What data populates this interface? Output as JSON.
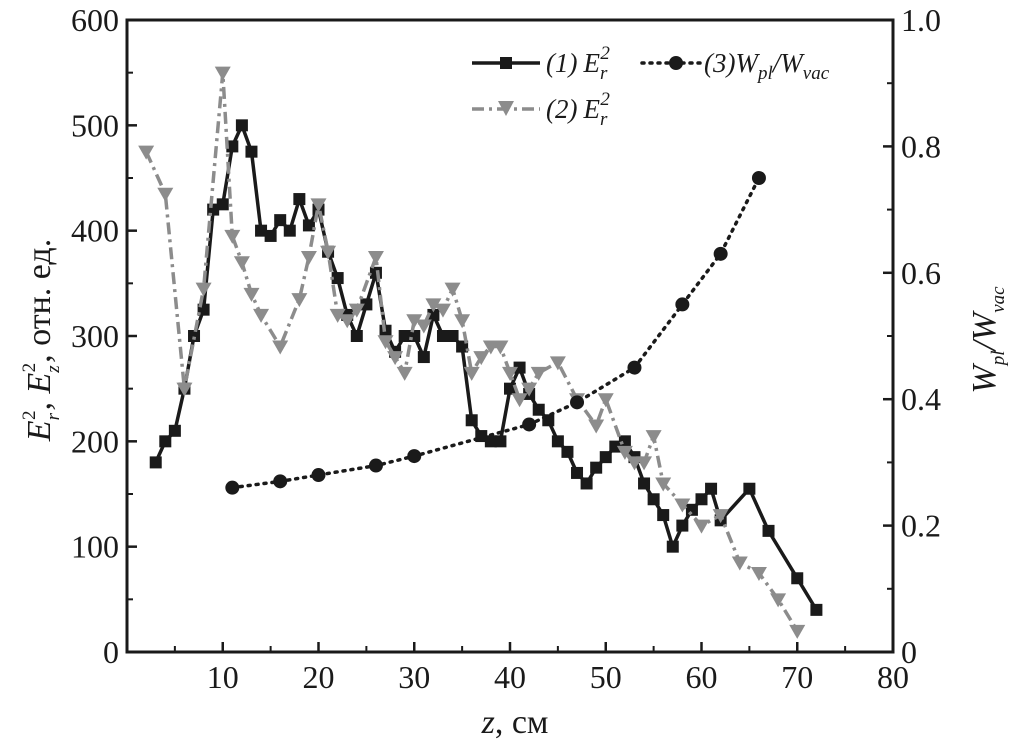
{
  "chart_data": {
    "type": "line",
    "xlabel_var": "z",
    "xlabel_unit": ", см",
    "ylabel_left_parts": [
      "E",
      "r",
      "2",
      ", E",
      "z",
      "2",
      ", отн. ед."
    ],
    "ylabel_right_parts": [
      "W",
      "pl",
      "/W",
      "vac"
    ],
    "x_ticks": [
      "10",
      "20",
      "30",
      "40",
      "50",
      "60",
      "70",
      "80"
    ],
    "y_left_ticks": [
      "0",
      "100",
      "200",
      "300",
      "400",
      "500",
      "600"
    ],
    "y_right_ticks": [
      "0",
      "0.2",
      "0.4",
      "0.6",
      "0.8",
      "1.0"
    ],
    "xlim": [
      0,
      80
    ],
    "ylim_left": [
      0,
      600
    ],
    "ylim_right": [
      0,
      1.0
    ],
    "grid": false,
    "legend_position": "top-right",
    "series": [
      {
        "id": "s1",
        "legend_num": "(1)",
        "legend_sym": "E",
        "legend_sub": "r",
        "legend_sup": "2",
        "axis": "left",
        "color": "#1a1a1a",
        "style": "solid",
        "marker": "square",
        "x": [
          3,
          4,
          5,
          6,
          7,
          8,
          9,
          10,
          11,
          12,
          13,
          14,
          15,
          16,
          17,
          18,
          19,
          20,
          21,
          22,
          23,
          24,
          25,
          26,
          27,
          28,
          29,
          30,
          31,
          32,
          33,
          34,
          35,
          36,
          37,
          38,
          39,
          40,
          41,
          42,
          43,
          44,
          45,
          46,
          47,
          48,
          49,
          50,
          51,
          52,
          53,
          54,
          55,
          56,
          57,
          58,
          59,
          60,
          61,
          62,
          65,
          67,
          70,
          72
        ],
        "y": [
          180,
          200,
          210,
          250,
          300,
          325,
          420,
          425,
          480,
          500,
          475,
          400,
          395,
          410,
          400,
          430,
          405,
          420,
          380,
          355,
          320,
          300,
          330,
          360,
          305,
          285,
          300,
          300,
          280,
          320,
          300,
          300,
          290,
          220,
          205,
          200,
          200,
          250,
          270,
          245,
          230,
          220,
          200,
          190,
          170,
          160,
          175,
          185,
          195,
          200,
          185,
          160,
          145,
          130,
          100,
          120,
          135,
          145,
          155,
          125,
          155,
          115,
          70,
          40
        ]
      },
      {
        "id": "s2",
        "legend_num": "(2)",
        "legend_sym": "E",
        "legend_sub": "r",
        "legend_sup": "2",
        "axis": "left",
        "color": "#8c8c8c",
        "style": "dashdot",
        "marker": "triangle-down",
        "x": [
          2,
          4,
          6,
          8,
          10,
          11,
          12,
          13,
          14,
          16,
          18,
          19,
          20,
          21,
          22,
          23,
          24,
          26,
          27,
          28,
          29,
          30,
          31,
          32,
          33,
          34,
          35,
          36,
          37,
          38,
          39,
          40,
          41,
          42,
          43,
          45,
          47,
          49,
          50,
          52,
          53,
          54,
          55,
          56,
          58,
          60,
          62,
          64,
          66,
          68,
          70
        ],
        "y": [
          475,
          435,
          250,
          345,
          550,
          395,
          370,
          340,
          320,
          290,
          335,
          375,
          425,
          380,
          320,
          315,
          325,
          375,
          295,
          280,
          265,
          315,
          310,
          330,
          325,
          345,
          315,
          265,
          280,
          290,
          290,
          265,
          240,
          250,
          265,
          275,
          240,
          215,
          240,
          190,
          180,
          180,
          205,
          160,
          140,
          120,
          130,
          85,
          75,
          50,
          20
        ]
      },
      {
        "id": "s3",
        "legend_num": "(3)",
        "legend_sym": "W",
        "legend_sub": "pl",
        "legend_sym2": "/W",
        "legend_sub2": "vac",
        "axis": "right",
        "color": "#1a1a1a",
        "style": "dotted",
        "marker": "circle",
        "x": [
          11,
          16,
          20,
          26,
          30,
          42,
          47,
          53,
          58,
          62,
          66
        ],
        "y": [
          0.26,
          0.27,
          0.28,
          0.295,
          0.31,
          0.36,
          0.395,
          0.45,
          0.55,
          0.63,
          0.75
        ]
      }
    ]
  }
}
